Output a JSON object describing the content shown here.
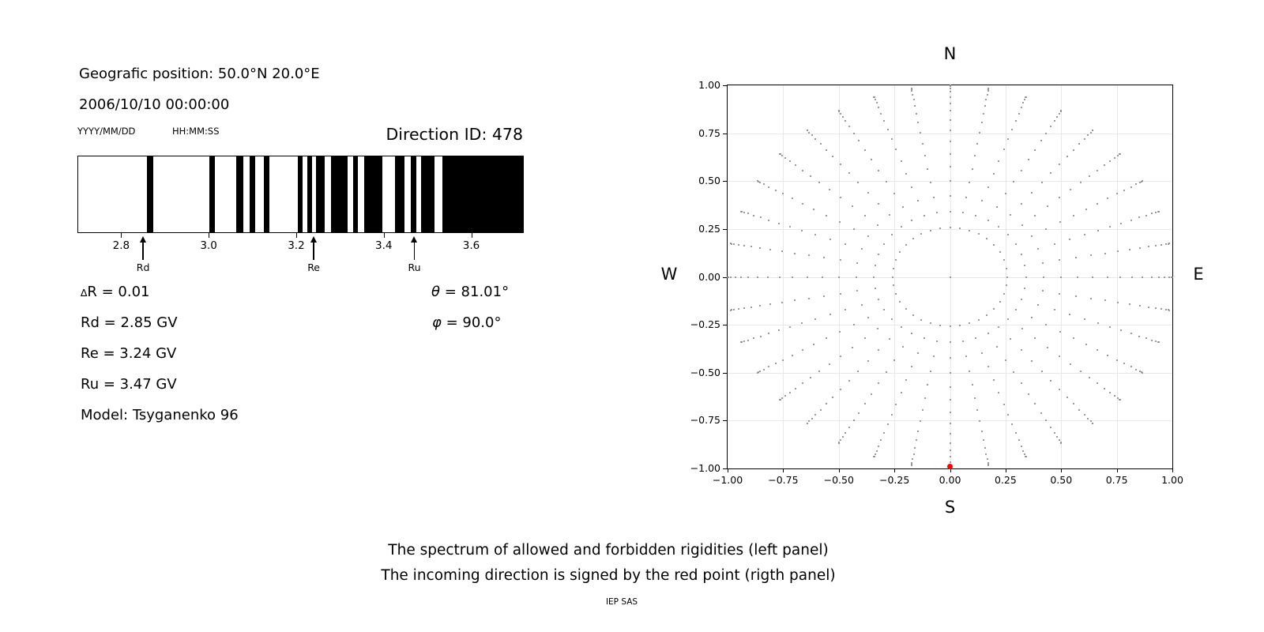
{
  "header": {
    "position_line": "Geografic position: 50.0°N 20.0°E",
    "datetime_line": "2006/10/10 00:00:00",
    "date_format_label": "YYYY/MM/DD",
    "time_format_label": "HH:MM:SS",
    "direction_id": "Direction ID: 478"
  },
  "info_panel": {
    "delta_symbol": "∆",
    "delta_rest": "R = 0.01",
    "rd": "Rd = 2.85 GV",
    "re": "Re = 3.24 GV",
    "ru": "Ru = 3.47 GV",
    "model": "Model: Tsyganenko 96",
    "theta_symbol": "θ",
    "theta_rest": " = 81.01°",
    "phi_symbol": "φ",
    "phi_rest": " = 90.0°"
  },
  "captions": {
    "line1": "The spectrum of allowed and forbidden rigidities (left panel)",
    "line2": "The incoming direction is signed by the red point (rigth panel)",
    "credit": "IEP SAS"
  },
  "chart_data": [
    {
      "type": "bar",
      "subtype": "allowed-forbidden-rigidity-spectrum",
      "title": "Direction ID: 478",
      "xlabel": "",
      "ylabel": "",
      "xlim": [
        2.7,
        3.72
      ],
      "x_ticks": [
        2.8,
        3.0,
        3.2,
        3.4,
        3.6
      ],
      "x_tick_labels": [
        "2.8",
        "3.0",
        "3.2",
        "3.4",
        "3.6"
      ],
      "band_color": "#000000",
      "background_color": "#ffffff",
      "forbidden_bands_gv": [
        [
          2.857,
          2.872
        ],
        [
          3.0,
          3.013
        ],
        [
          3.063,
          3.079
        ],
        [
          3.093,
          3.105
        ],
        [
          3.126,
          3.138
        ],
        [
          3.204,
          3.215
        ],
        [
          3.226,
          3.236
        ],
        [
          3.246,
          3.265
        ],
        [
          3.28,
          3.318
        ],
        [
          3.33,
          3.342
        ],
        [
          3.355,
          3.398
        ],
        [
          3.427,
          3.448
        ],
        [
          3.462,
          3.476
        ],
        [
          3.487,
          3.517
        ],
        [
          3.535,
          3.72
        ]
      ],
      "markers": [
        {
          "label": "Rd",
          "value_gv": 2.85
        },
        {
          "label": "Re",
          "value_gv": 3.24
        },
        {
          "label": "Ru",
          "value_gv": 3.47
        }
      ]
    },
    {
      "type": "scatter",
      "subtype": "incoming-direction-grid-fisheye",
      "xlim": [
        -1.0,
        1.0
      ],
      "ylim": [
        -1.0,
        1.0
      ],
      "grid": true,
      "grid_color": "#e8e8e8",
      "x_ticks": [
        -1.0,
        -0.75,
        -0.5,
        -0.25,
        0.0,
        0.25,
        0.5,
        0.75,
        1.0
      ],
      "x_tick_labels": [
        "−1.00",
        "−0.75",
        "−0.50",
        "−0.25",
        "0.00",
        "0.25",
        "0.50",
        "0.75",
        "1.00"
      ],
      "y_ticks": [
        1.0,
        0.75,
        0.5,
        0.25,
        0.0,
        -0.25,
        -0.5,
        -0.75,
        -1.0
      ],
      "y_tick_labels": [
        "1.00",
        "0.75",
        "0.50",
        "0.25",
        "0.00",
        "−0.25",
        "−0.50",
        "−0.75",
        "−1.00"
      ],
      "compass_labels": {
        "top": "N",
        "bottom": "S",
        "left": "W",
        "right": "E"
      },
      "dot_color": "#8f8f8f",
      "dot_grid": {
        "azimuth_deg_start": 0,
        "azimuth_deg_step": 10,
        "azimuth_count": 36,
        "zenith_deg_min": 15,
        "zenith_deg_max": 90,
        "zenith_deg_step": 5,
        "radius_rule": "sin(zenith)",
        "x_rule": "sin(zenith)*sin(azimuth)",
        "y_rule": "sin(zenith)*cos(azimuth)",
        "include_center_dot": true
      },
      "red_point": {
        "x": 0.0,
        "y": -0.99,
        "color": "#ff0000"
      }
    }
  ]
}
